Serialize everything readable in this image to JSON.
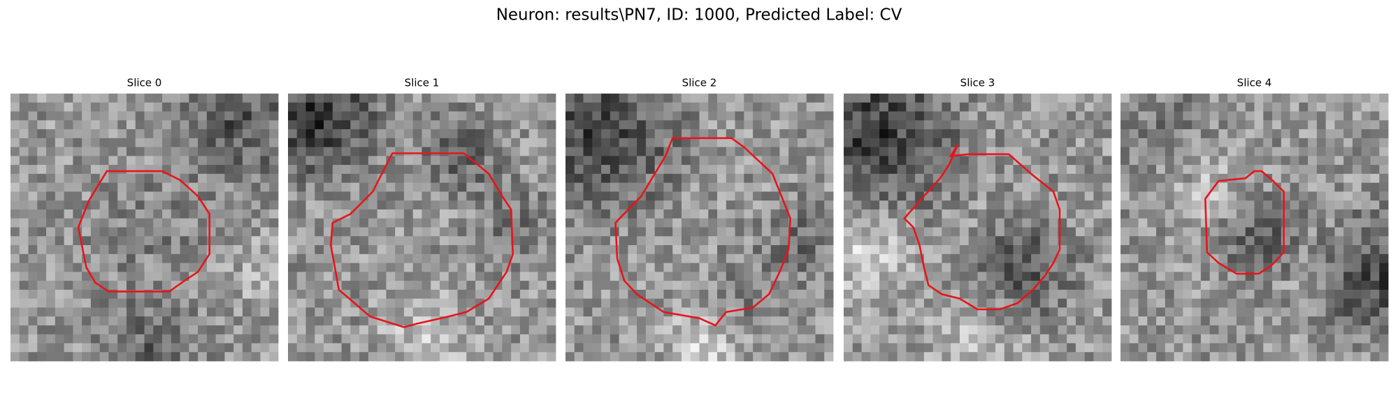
{
  "title": "Neuron: results\\PN7, ID: 1000, Predicted Label: CV",
  "panels": [
    {
      "title": "Slice 0"
    },
    {
      "title": "Slice 1"
    },
    {
      "title": "Slice 2"
    },
    {
      "title": "Slice 3"
    },
    {
      "title": "Slice 4"
    }
  ]
}
